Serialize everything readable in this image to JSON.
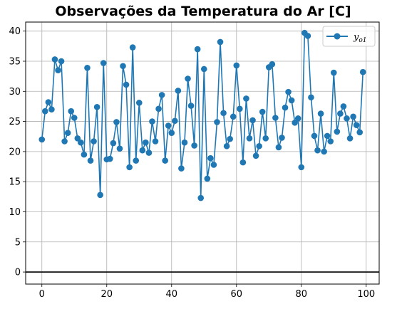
{
  "chart_data": {
    "type": "line",
    "title": "Observações da Temperatura do Ar [C]",
    "xlabel": "",
    "ylabel": "",
    "xlim": [
      -5,
      104
    ],
    "ylim": [
      -2,
      41.5
    ],
    "xticks": [
      0,
      20,
      40,
      60,
      80,
      100
    ],
    "yticks": [
      0,
      5,
      10,
      15,
      20,
      25,
      30,
      35,
      40
    ],
    "grid": true,
    "legend_position": "top-right",
    "reference_line": {
      "y": 0,
      "color": "#000000"
    },
    "series": [
      {
        "name": "y",
        "name_subscript": "o1",
        "color": "#1f77b4",
        "marker": "circle",
        "x": [
          0,
          1,
          2,
          3,
          4,
          5,
          6,
          7,
          8,
          9,
          10,
          11,
          12,
          13,
          14,
          15,
          16,
          17,
          18,
          19,
          20,
          21,
          22,
          23,
          24,
          25,
          26,
          27,
          28,
          29,
          30,
          31,
          32,
          33,
          34,
          35,
          36,
          37,
          38,
          39,
          40,
          41,
          42,
          43,
          44,
          45,
          46,
          47,
          48,
          49,
          50,
          51,
          52,
          53,
          54,
          55,
          56,
          57,
          58,
          59,
          60,
          61,
          62,
          63,
          64,
          65,
          66,
          67,
          68,
          69,
          70,
          71,
          72,
          73,
          74,
          75,
          76,
          77,
          78,
          79,
          80,
          81,
          82,
          83,
          84,
          85,
          86,
          87,
          88,
          89,
          90,
          91,
          92,
          93,
          94,
          95,
          96,
          97,
          98,
          99
        ],
        "y": [
          22.0,
          26.7,
          28.2,
          27.0,
          35.3,
          33.5,
          35.0,
          21.7,
          23.1,
          26.7,
          25.6,
          22.2,
          21.5,
          19.5,
          33.9,
          18.5,
          21.7,
          27.4,
          12.8,
          34.7,
          18.7,
          18.8,
          21.4,
          24.9,
          20.5,
          34.2,
          31.1,
          17.4,
          37.3,
          18.5,
          28.1,
          20.2,
          21.5,
          19.8,
          25.0,
          21.7,
          27.1,
          29.4,
          18.5,
          24.3,
          23.1,
          25.1,
          30.1,
          17.2,
          21.5,
          32.1,
          27.6,
          21.0,
          37.0,
          12.3,
          33.7,
          15.5,
          18.9,
          17.8,
          24.9,
          38.2,
          26.4,
          20.9,
          22.1,
          25.8,
          34.3,
          27.1,
          18.2,
          28.8,
          22.2,
          25.2,
          19.3,
          20.9,
          26.6,
          22.2,
          34.0,
          34.5,
          25.6,
          20.7,
          22.3,
          27.3,
          29.9,
          28.5,
          24.8,
          25.5,
          17.4,
          39.7,
          39.2,
          29.0,
          22.6,
          20.2,
          26.3,
          20.0,
          22.6,
          21.7,
          33.1,
          23.3,
          26.3,
          27.5,
          25.5,
          22.2,
          25.8,
          24.4,
          23.2,
          33.2
        ]
      }
    ]
  }
}
